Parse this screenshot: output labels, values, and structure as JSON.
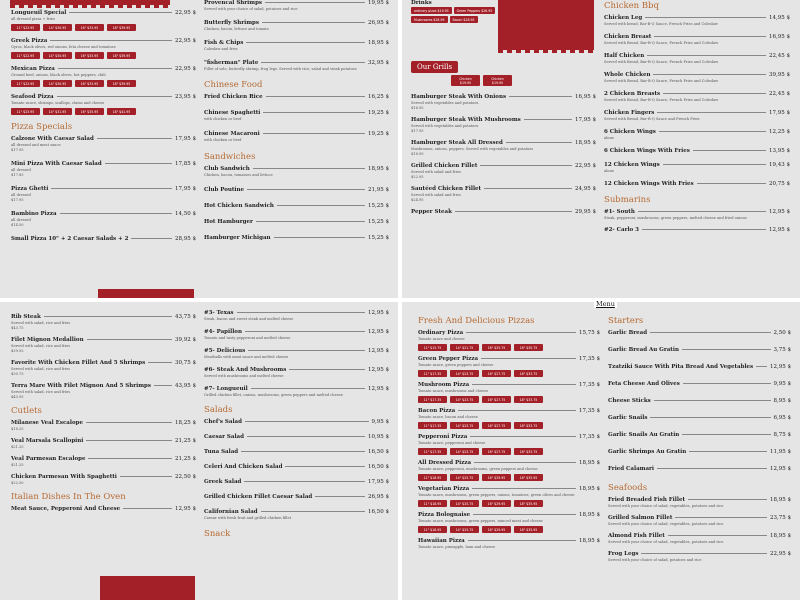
{
  "q1": {
    "left": [
      {
        "name": "Longueuil Special",
        "price": "22,95 $",
        "desc": "all dressed pizza + fries",
        "pills": [
          "11\" $22.95",
          "14\" $30.95",
          "16\" $33.95",
          "18\" $39.95"
        ]
      },
      {
        "name": "Greek Pizza",
        "price": "22,95 $",
        "desc": "Gyros, black olives, red onions, feta cheese and tomatoes",
        "pills": [
          "11\" $22.95",
          "14\" $30.95",
          "16\" $33.95",
          "18\" $39.95"
        ]
      },
      {
        "name": "Mexican Pizza",
        "price": "22,95 $",
        "desc": "Ground beef, onions, black olives, hot peppers, chili",
        "pills": [
          "11\" $22.95",
          "14\" $30.95",
          "16\" $33.95",
          "18\" $39.95"
        ]
      },
      {
        "name": "Seafood Pizza",
        "price": "23,95 $",
        "desc": "Tomato sauce, shrimps, scallops, clams and cheese",
        "pills": [
          "11\" $23.95",
          "14\" $31.95",
          "16\" $35.95",
          "18\" $41.95"
        ]
      }
    ],
    "pizza_specials_title": "Pizza Specials",
    "specials": [
      {
        "name": "Calzone With Caesar Salad",
        "price": "17,95 $",
        "desc": "all dressed and meat sauce",
        "price2": "$17.95"
      },
      {
        "name": "Mini Pizza With Caesar Salad",
        "price": "17,85 $",
        "desc": "all dressed",
        "price2": "$17.85"
      },
      {
        "name": "Pizza Ghetti",
        "price": "17,95 $",
        "desc": "all dressed",
        "price2": "$17.95"
      },
      {
        "name": "Bambino Pizza",
        "price": "14,50 $",
        "desc": "all dressed",
        "price2": "$14.50"
      },
      {
        "name": "Small Pizza 10\" + 2 Caesar Salads + 2",
        "price": "28,95 $",
        "desc": "",
        "price2": ""
      }
    ],
    "right": [
      {
        "name": "Provencal Shrimps",
        "price": "19,95 $",
        "desc": "Served with your choice of salad, potatoes and rice"
      },
      {
        "name": "Butterfly Shrimps",
        "price": "26,95 $",
        "desc": "Chicken, bacon, lettuce and tomato"
      },
      {
        "name": "Fish & Chips",
        "price": "18,95 $",
        "desc": "Coleslaw and fries"
      },
      {
        "name": "\"fisherman\" Plate",
        "price": "32,95 $",
        "desc": "Fillet of sole, butterfly shrimp, frog legs. Served with rice, salad and steak potatoes"
      }
    ],
    "chinese_title": "Chinese Food",
    "chinese": [
      {
        "name": "Fried Chicken Rice",
        "price": "16,25 $",
        "desc": ""
      },
      {
        "name": "Chinese Spaghetti",
        "price": "19,25 $",
        "desc": "with chicken or beef"
      },
      {
        "name": "Chinese Macaroni",
        "price": "19,25 $",
        "desc": "with chicken or beef"
      }
    ],
    "sandwiches_title": "Sandwiches",
    "sandwiches": [
      {
        "name": "Club Sandwich",
        "price": "18,95 $",
        "desc": "Chicken, bacon, tomatoes and lettuce"
      },
      {
        "name": "Club Poutine",
        "price": "21,95 $",
        "desc": ""
      },
      {
        "name": "Hot Chicken Sandwich",
        "price": "15,25 $",
        "desc": ""
      },
      {
        "name": "Hot Hamburger",
        "price": "15,25 $",
        "desc": ""
      },
      {
        "name": "Hamburger Michigan",
        "price": "15,25 $",
        "desc": ""
      }
    ]
  },
  "q2": {
    "drinks_title": "Drinks",
    "drinks_items": [
      "ordinary pizza $19.95",
      "Green Peppers $26.95",
      "Mushrooms $28.95",
      "Bacon $28.95"
    ],
    "grills_title": "Our Grills",
    "grill_pills": [
      "Chicken $19.95",
      "Chicken $19.95"
    ],
    "grills": [
      {
        "name": "Hamburger Steak With Onions",
        "price": "16,95 $",
        "desc": "Served with vegetables and potatoes",
        "price2": "$16.95"
      },
      {
        "name": "Hamburger Steak With Mushrooms",
        "price": "17,95 $",
        "desc": "Served with vegetables and potatoes",
        "price2": "$17.95"
      },
      {
        "name": "Hamburger Steak All Dressed",
        "price": "18,95 $",
        "desc": "Mushrooms, onions, peppers. Served with vegetables and potatoes",
        "price2": "$18.95"
      },
      {
        "name": "Grilled Chicken Fillet",
        "price": "22,95 $",
        "desc": "Served with salad and fries",
        "price2": "$22.95"
      },
      {
        "name": "Sautéed Chicken Fillet",
        "price": "24,95 $",
        "desc": "Served with salad and fries",
        "price2": "$24.95"
      },
      {
        "name": "Pepper Steak",
        "price": "29,95 $",
        "desc": "",
        "price2": ""
      }
    ],
    "bbq_title": "Chicken Bbq",
    "bbq": [
      {
        "name": "Chicken Leg",
        "price": "14,95 $",
        "desc": "Served with bread, Bar-B-Q Sauce, French Fries and Coleslaw"
      },
      {
        "name": "Chicken Breast",
        "price": "16,95 $",
        "desc": "Served with Bread, Bar-B-Q Sauce, French Fries and Coleslaw"
      },
      {
        "name": "Half Chicken",
        "price": "22,45 $",
        "desc": "Served with Bread, Bar-B-Q Sauce, French Fries and Coleslaw"
      },
      {
        "name": "Whole Chicken",
        "price": "39,95 $",
        "desc": "Served with Bread, Bar-B-Q Sauce, French Fries and Coleslaw"
      },
      {
        "name": "2 Chicken Breasts",
        "price": "22,45 $",
        "desc": "Served with Bread, Bar-B-Q Sauce, French Fries and Coleslaw"
      },
      {
        "name": "Chicken Fingers",
        "price": "17,95 $",
        "desc": "Served with Bread, Bar-B-Q Sauce and French Fries"
      },
      {
        "name": "6 Chicken Wings",
        "price": "12,25 $",
        "desc": "alone"
      },
      {
        "name": "6 Chicken Wings With Fries",
        "price": "13,95 $",
        "desc": ""
      },
      {
        "name": "12 Chicken Wings",
        "price": "19,43 $",
        "desc": "alone"
      },
      {
        "name": "12 Chicken Wings With Fries",
        "price": "20,75 $",
        "desc": ""
      }
    ],
    "sub_title": "Submarins",
    "subs": [
      {
        "name": "#1- South",
        "price": "12,95 $",
        "desc": "Steak, pepperoni, mushrooms, green peppers, melted cheese and fried onions"
      },
      {
        "name": "#2- Carlo 3",
        "price": "12,95 $",
        "desc": ""
      }
    ]
  },
  "q3": {
    "steaks": [
      {
        "name": "Rib Steak",
        "price": "43,75 $",
        "desc": "Served with salad, rice and fries",
        "price2": "$43.75"
      },
      {
        "name": "Filet Mignon Medallion",
        "price": "39,92 $",
        "desc": "Served with salad, rice and fries",
        "price2": "$39.92"
      },
      {
        "name": "Favorite With Chicken Fillet And 5 Shrimps",
        "price": "30,75 $",
        "desc": "Served with salad, rice and fries",
        "price2": "$30.75"
      },
      {
        "name": "Terra Mare With Filet Mignon And 5 Shrimps",
        "price": "43,95 $",
        "desc": "Served with salad, rice and fries",
        "price2": "$43.95"
      }
    ],
    "cutlets_title": "Cutlets",
    "cutlets": [
      {
        "name": "Milanese Veal Escalope",
        "price": "18,25 $",
        "desc": "",
        "price2": "$18.25"
      },
      {
        "name": "Veal Marsala Scallopini",
        "price": "21,25 $",
        "desc": "",
        "price2": "$21.25"
      },
      {
        "name": "Veal Parmesan Escalope",
        "price": "21,25 $",
        "desc": "",
        "price2": "$21.25"
      },
      {
        "name": "Chicken Parmesan With Spaghetti",
        "price": "22,50 $",
        "desc": "",
        "price2": "$22.50"
      }
    ],
    "italian_title": "Italian Dishes In The Oven",
    "italian_first": "Meat Sauce, Pepperoni And Cheese",
    "italian_first_price": "12,95 $",
    "subs": [
      {
        "name": "#3- Texas",
        "price": "12,95 $",
        "desc": "Steak, bacon and sweet steak and melted cheese"
      },
      {
        "name": "#4- Papillon",
        "price": "12,95 $",
        "desc": "Tomato and tasty pepperoni and melted cheese"
      },
      {
        "name": "#5- Delicious",
        "price": "12,95 $",
        "desc": "Meatballs with meat sauce and melted cheese"
      },
      {
        "name": "#6- Steak And Mushrooms",
        "price": "12,95 $",
        "desc": "Served with mushrooms and melted cheese"
      },
      {
        "name": "#7- Longueuil",
        "price": "12,95 $",
        "desc": "Grilled chicken fillet, onions, mushrooms, green peppers and melted cheese"
      }
    ],
    "salads_title": "Salads",
    "salads": [
      {
        "name": "Chef's Salad",
        "price": "9,95 $",
        "desc": ""
      },
      {
        "name": "Caesar Salad",
        "price": "10,95 $",
        "desc": ""
      },
      {
        "name": "Tuna Salad",
        "price": "16,50 $",
        "desc": ""
      },
      {
        "name": "Celeri And Chicken Salad",
        "price": "16,50 $",
        "desc": ""
      },
      {
        "name": "Greek Salad",
        "price": "17,95 $",
        "desc": ""
      },
      {
        "name": "Grilled Chicken Fillet Caesar Salad",
        "price": "26,95 $",
        "desc": ""
      },
      {
        "name": "Californian Salad",
        "price": "16,50 $",
        "desc": "Caesar with fresh fruit and grilled chicken fillet"
      }
    ],
    "snack_title": "Snack"
  },
  "q4": {
    "menu_link": "Menu",
    "pizzas_title": "Fresh And Delicious Pizzas",
    "pizzas": [
      {
        "name": "Ordinary Pizza",
        "price": "15,75 $",
        "desc": "Tomato sauce and cheese",
        "pills": [
          "11\" $15.75",
          "14\" $21.75",
          "16\" $25.75",
          "18\" $30.75"
        ]
      },
      {
        "name": "Green Pepper Pizza",
        "price": "17,35 $",
        "desc": "Tomato sauce, green peppers and cheese",
        "pills": [
          "11\" $17.35",
          "14\" $23.75",
          "16\" $27.75",
          "18\" $33.75"
        ]
      },
      {
        "name": "Mushroom Pizza",
        "price": "17,35 $",
        "desc": "Tomato sauce, mushrooms and cheese",
        "pills": [
          "11\" $17.35",
          "14\" $23.75",
          "16\" $27.75",
          "18\" $33.75"
        ]
      },
      {
        "name": "Bacon Pizza",
        "price": "17,35 $",
        "desc": "Tomato sauce, bacon and cheese",
        "pills": [
          "11\" $17.35",
          "14\" $23.75",
          "16\" $27.75",
          "18\" $33.75"
        ]
      },
      {
        "name": "Pepperoni Pizza",
        "price": "17,35 $",
        "desc": "Tomato sauce, pepperoni and cheese",
        "pills": [
          "11\" $17.35",
          "14\" $23.75",
          "16\" $27.75",
          "18\" $33.75"
        ]
      },
      {
        "name": "All Dressed Pizza",
        "price": "18,95 $",
        "desc": "Tomato sauce, pepperoni, mushrooms, green peppers and cheese",
        "pills": [
          "11\" $18.95",
          "14\" $25.75",
          "16\" $29.95",
          "18\" $35.95"
        ]
      },
      {
        "name": "Vegetarian Pizza",
        "price": "18,95 $",
        "desc": "Tomato sauce, mushrooms, green peppers, onions, tomatoes, green olives and cheese",
        "pills": [
          "11\" $18.95",
          "14\" $25.75",
          "16\" $29.95",
          "18\" $35.95"
        ]
      },
      {
        "name": "Pizza Bolognaise",
        "price": "18,95 $",
        "desc": "Tomato sauce, mushrooms, green peppers, minced meat and cheese",
        "pills": [
          "11\" $18.95",
          "14\" $25.75",
          "16\" $29.95",
          "18\" $35.95"
        ]
      },
      {
        "name": "Hawaiian Pizza",
        "price": "18,95 $",
        "desc": "Tomato sauce, pineapple, ham and cheese",
        "pills": []
      }
    ],
    "starters_title": "Starters",
    "starters": [
      {
        "name": "Garlic Bread",
        "price": "2,50 $"
      },
      {
        "name": "Garlic Bread Au Gratin",
        "price": "3,75 $"
      },
      {
        "name": "Tzatziki Sauce With Pita Bread And Vegetables",
        "price": "12,95 $"
      },
      {
        "name": "Feta Cheese And Olives",
        "price": "9,95 $"
      },
      {
        "name": "Cheese Sticks",
        "price": "8,95 $"
      },
      {
        "name": "Garlic Snails",
        "price": "6,95 $"
      },
      {
        "name": "Garlic Snails Au Gratin",
        "price": "8,75 $"
      },
      {
        "name": "Garlic Shrimps Au Gratin",
        "price": "11,95 $"
      },
      {
        "name": "Fried Calamari",
        "price": "12,95 $"
      }
    ],
    "seafoods_title": "Seafoods",
    "seafoods": [
      {
        "name": "Fried Breaded Fish Fillet",
        "price": "18,95 $",
        "desc": "Served with your choice of salad, vegetables, potatoes and rice"
      },
      {
        "name": "Grilled Salmon Fillet",
        "price": "23,75 $",
        "desc": "Served with your choice of salad, vegetables, potatoes and rice"
      },
      {
        "name": "Almond Fish Fillet",
        "price": "18,95 $",
        "desc": "Served with your choice of salad, vegetables, potatoes and rice"
      },
      {
        "name": "Frog Legs",
        "price": "22,95 $",
        "desc": "Served with your choice of salad, potatoes and rice"
      }
    ]
  },
  "colors": {
    "accent": "#a32028",
    "section": "#b56a33",
    "bg": "#e5e5e5"
  }
}
